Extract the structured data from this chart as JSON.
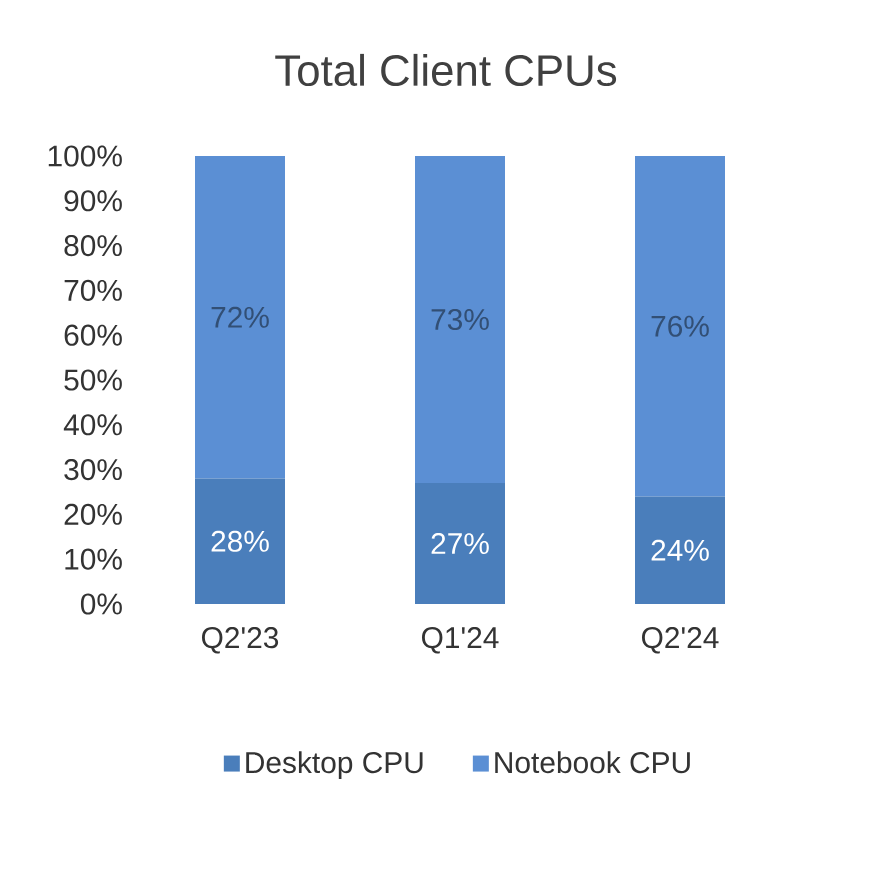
{
  "chart_data": {
    "type": "bar",
    "title": "Total Client CPUs",
    "categories": [
      "Q2'23",
      "Q1'24",
      "Q2'24"
    ],
    "stacked": true,
    "series": [
      {
        "name": "Desktop CPU",
        "color": "#4a7ebb",
        "values": [
          28,
          27,
          24
        ],
        "value_labels": [
          "28%",
          "27%",
          "24%"
        ]
      },
      {
        "name": "Notebook CPU",
        "color": "#5b8fd4",
        "values": [
          72,
          73,
          76
        ],
        "value_labels": [
          "72%",
          "73%",
          "76%"
        ]
      }
    ],
    "ylim": [
      0,
      100
    ],
    "yticks": [
      {
        "value": 0,
        "label": "0%"
      },
      {
        "value": 10,
        "label": "10%"
      },
      {
        "value": 20,
        "label": "20%"
      },
      {
        "value": 30,
        "label": "30%"
      },
      {
        "value": 40,
        "label": "40%"
      },
      {
        "value": 50,
        "label": "50%"
      },
      {
        "value": 60,
        "label": "60%"
      },
      {
        "value": 70,
        "label": "70%"
      },
      {
        "value": 80,
        "label": "80%"
      },
      {
        "value": 90,
        "label": "90%"
      },
      {
        "value": 100,
        "label": "100%"
      }
    ],
    "legend": "bottom"
  }
}
